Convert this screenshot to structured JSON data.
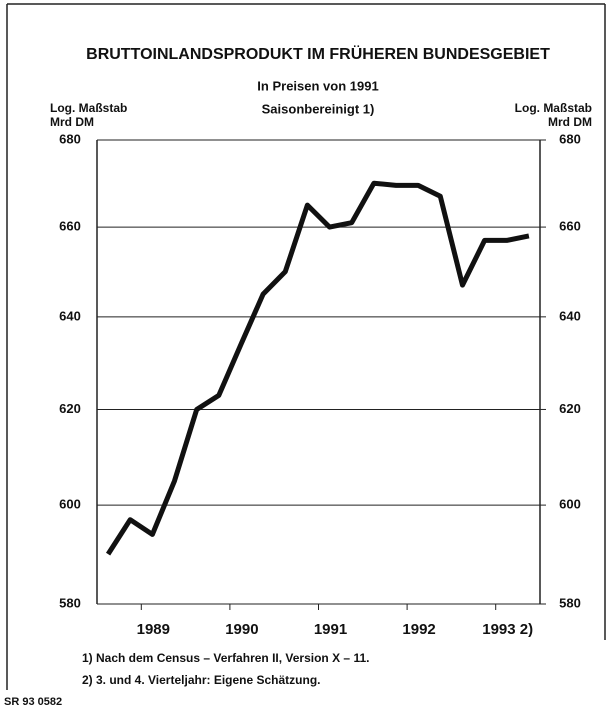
{
  "chart_data": {
    "type": "line",
    "title": "BRUTTOINLANDSPRODUKT IM FRÜHEREN BUNDESGEBIET",
    "subtitle": "In Preisen von 1991",
    "subtitle2": "Saisonbereinigt 1)",
    "ylabel": [
      "Log. Maßstab",
      "Mrd DM"
    ],
    "y2label": [
      "Log. Maßstab",
      "Mrd DM"
    ],
    "x": [
      1989.125,
      1989.375,
      1989.625,
      1989.875,
      1990.125,
      1990.375,
      1990.625,
      1990.875,
      1991.125,
      1991.375,
      1991.625,
      1991.875,
      1992.125,
      1992.375,
      1992.625,
      1992.875,
      1993.125,
      1993.375,
      1993.625,
      1993.875
    ],
    "series": [
      {
        "name": "Bruttoinlandsprodukt",
        "color": "#111111",
        "values": [
          590,
          597,
          594,
          605,
          620,
          623,
          634,
          645,
          650,
          665,
          660,
          661,
          670,
          669.5,
          669.5,
          667,
          647,
          657,
          657,
          658
        ]
      }
    ],
    "xlim": [
      1989,
      1994
    ],
    "xticks": [
      {
        "value": 1989.5,
        "label": "1989"
      },
      {
        "value": 1990.5,
        "label": "1990"
      },
      {
        "value": 1991.5,
        "label": "1991"
      },
      {
        "value": 1992.5,
        "label": "1992"
      },
      {
        "value": 1993.5,
        "label": "1993 2)"
      }
    ],
    "ylim": [
      580,
      680
    ],
    "yticks": [
      580,
      600,
      620,
      640,
      660,
      680
    ],
    "y2lim": [
      580,
      680
    ],
    "y2ticks": [
      580,
      600,
      620,
      640,
      660,
      680
    ],
    "log_scale": true,
    "grid": true,
    "footnotes": [
      "1) Nach dem Census – Verfahren II, Version X – 11.",
      "2) 3. und 4. Vierteljahr: Eigene Schätzung."
    ],
    "source": "SR 93 0582"
  }
}
